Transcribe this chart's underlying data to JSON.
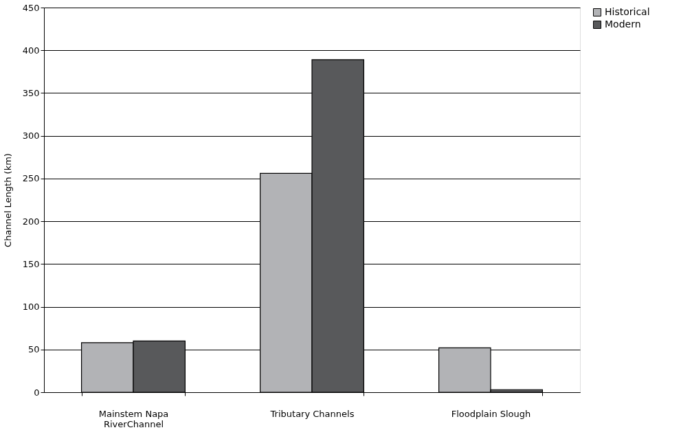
{
  "chart_data": {
    "type": "bar",
    "ylabel": "Channel Length (km)",
    "categories": [
      "Mainstem Napa RiverChannel",
      "Tributary Channels",
      "Floodplain Slough"
    ],
    "series": [
      {
        "name": "Historical",
        "color": "#b2b3b6",
        "values": [
          58,
          256,
          52
        ]
      },
      {
        "name": "Modern",
        "color": "#58595b",
        "values": [
          60,
          389,
          3
        ]
      }
    ],
    "ylim": [
      0,
      450
    ],
    "yticks": [
      0,
      50,
      100,
      150,
      200,
      250,
      300,
      350,
      400,
      450
    ],
    "grid": "y",
    "legend": "right"
  }
}
